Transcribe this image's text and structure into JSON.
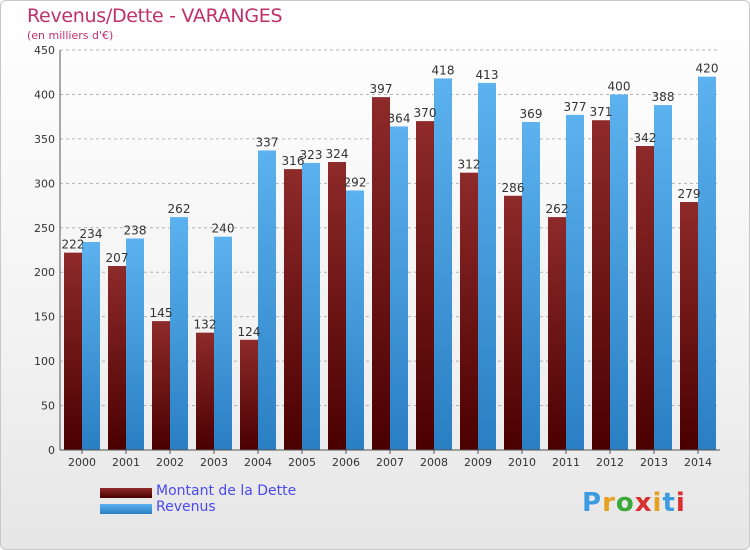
{
  "title": "Revenus/Dette - VARANGES",
  "subtitle": "(en milliers d'€)",
  "logo_text": "Proxiti",
  "colors": {
    "dette": "#7b1c1c",
    "revenus": "#3d9be0",
    "title": "#c0306a",
    "legend_text": "#4a4af0",
    "grid": "#b0b0b0"
  },
  "chart_data": {
    "type": "bar",
    "categories": [
      "2000",
      "2001",
      "2002",
      "2003",
      "2004",
      "2005",
      "2006",
      "2007",
      "2008",
      "2009",
      "2010",
      "2011",
      "2012",
      "2013",
      "2014"
    ],
    "series": [
      {
        "name": "Montant de la Dette",
        "values": [
          222,
          207,
          145,
          132,
          124,
          316,
          324,
          397,
          370,
          312,
          286,
          262,
          371,
          342,
          279
        ]
      },
      {
        "name": "Revenus",
        "values": [
          234,
          238,
          262,
          240,
          337,
          323,
          292,
          364,
          418,
          413,
          369,
          377,
          400,
          388,
          420
        ]
      }
    ],
    "title": "Revenus/Dette - VARANGES",
    "ylabel": "(en milliers d'€)",
    "ylim": [
      0,
      450
    ],
    "yticks": [
      0,
      50,
      100,
      150,
      200,
      250,
      300,
      350,
      400,
      450
    ],
    "grid": true,
    "legend_position": "bottom-left"
  }
}
